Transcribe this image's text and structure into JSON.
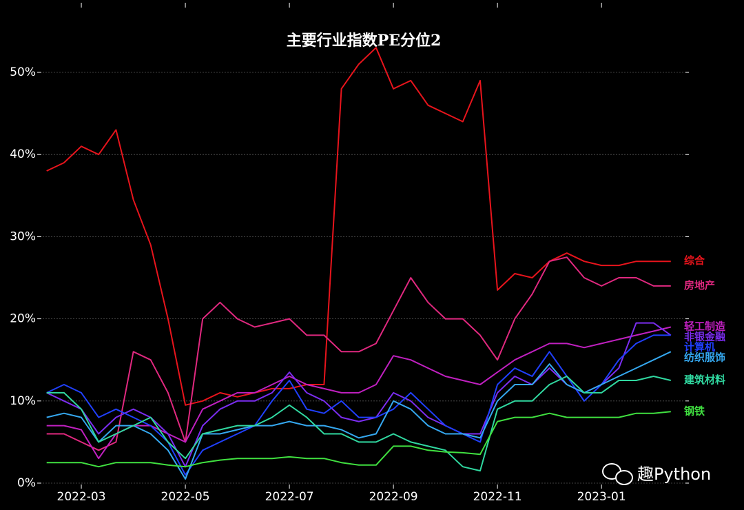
{
  "chart_data": {
    "type": "line",
    "title": "主要行业指数PE分位2",
    "watermark": "趣Python",
    "x": [
      null,
      null,
      "2022-03",
      null,
      null,
      null,
      null,
      null,
      "2022-05",
      null,
      null,
      null,
      null,
      null,
      "2022-07",
      null,
      null,
      null,
      null,
      null,
      "2022-09",
      null,
      null,
      null,
      null,
      null,
      "2022-11",
      null,
      null,
      null,
      null,
      null,
      "2023-01",
      null,
      null,
      null,
      null
    ],
    "ylim": [
      0,
      55
    ],
    "yticks": [
      {
        "value": 0,
        "label": "0%"
      },
      {
        "value": 10,
        "label": "10%"
      },
      {
        "value": 20,
        "label": "20%"
      },
      {
        "value": 30,
        "label": "30%"
      },
      {
        "value": 40,
        "label": "40%"
      },
      {
        "value": 50,
        "label": "50%"
      }
    ],
    "grid": true,
    "series": [
      {
        "name": "综合",
        "color": "#e8141c",
        "values": [
          38,
          39,
          41,
          40,
          43,
          34.5,
          29,
          20,
          9.5,
          10,
          11,
          10.5,
          11,
          11.5,
          11.5,
          12,
          12,
          48,
          51,
          53,
          48,
          49,
          46,
          45,
          44,
          49,
          23.5,
          25.5,
          25,
          27,
          28,
          27,
          26.5,
          26.5,
          27,
          27,
          27
        ]
      },
      {
        "name": "房地产",
        "color": "#e0287f",
        "values": [
          6,
          6,
          5,
          4,
          5,
          16,
          15,
          11,
          5,
          20,
          22,
          20,
          19,
          19.5,
          20,
          18,
          18,
          16,
          16,
          17,
          21,
          25,
          22,
          20,
          20,
          18,
          15,
          20,
          23,
          27,
          27.5,
          25,
          24,
          25,
          25,
          24,
          24
        ]
      },
      {
        "name": "轻工制造",
        "color": "#c020c0",
        "values": [
          7,
          7,
          6.5,
          3,
          6,
          7,
          7,
          6,
          5,
          9,
          10,
          11,
          11,
          12,
          13,
          12,
          11.5,
          11,
          11,
          12,
          15.5,
          15,
          14,
          13,
          12.5,
          12,
          13.5,
          15,
          16,
          17,
          17,
          16.5,
          17,
          17.5,
          18,
          18.5,
          19
        ]
      },
      {
        "name": "非银金融",
        "color": "#7b2df0",
        "values": [
          11,
          10,
          9,
          6,
          8,
          9,
          8,
          6,
          2,
          7,
          9,
          10,
          10,
          11,
          13.5,
          11,
          10,
          8,
          7.5,
          8,
          11,
          10,
          8,
          7,
          6,
          6,
          11,
          13,
          12,
          14,
          12,
          11,
          12,
          14,
          19.5,
          19.5,
          18
        ]
      },
      {
        "name": "计算机",
        "color": "#2040ff",
        "values": [
          11,
          12,
          11,
          8,
          9,
          8,
          7,
          5,
          1,
          4,
          5,
          6,
          7,
          10,
          12.5,
          9,
          8.5,
          10,
          8,
          8,
          9,
          11,
          9,
          7,
          6,
          5,
          12,
          14,
          13,
          16,
          13,
          10,
          12,
          15,
          17,
          18,
          18
        ]
      },
      {
        "name": "纺织服饰",
        "color": "#35a8f0",
        "values": [
          8,
          8.5,
          8,
          5,
          7,
          7,
          6,
          4,
          0.5,
          6,
          6,
          6.5,
          7,
          7,
          7.5,
          7,
          7,
          6.5,
          5.5,
          6,
          10,
          9,
          7,
          6,
          6,
          5.5,
          10,
          12,
          12,
          14.5,
          12,
          11,
          12,
          13,
          14,
          15,
          16
        ]
      },
      {
        "name": "建筑材料",
        "color": "#30d8a0",
        "values": [
          11,
          11,
          9,
          5,
          6,
          7,
          8,
          5,
          3,
          6,
          6.5,
          7,
          7,
          8,
          9.5,
          8,
          6,
          6,
          5,
          5,
          6,
          5,
          4.5,
          4,
          2,
          1.5,
          9,
          10,
          10,
          12,
          13,
          11,
          11,
          12.5,
          12.5,
          13,
          12.5
        ]
      },
      {
        "name": "钢铁",
        "color": "#40e040",
        "values": [
          2.5,
          2.5,
          2.5,
          2,
          2.5,
          2.5,
          2.5,
          2.2,
          2,
          2.5,
          2.8,
          3,
          3,
          3,
          3.2,
          3,
          3,
          2.5,
          2.2,
          2.2,
          4.5,
          4.5,
          4,
          3.8,
          3.7,
          3.5,
          7.5,
          8,
          8,
          8.5,
          8,
          8,
          8,
          8,
          8.5,
          8.5,
          8.7
        ]
      }
    ]
  }
}
